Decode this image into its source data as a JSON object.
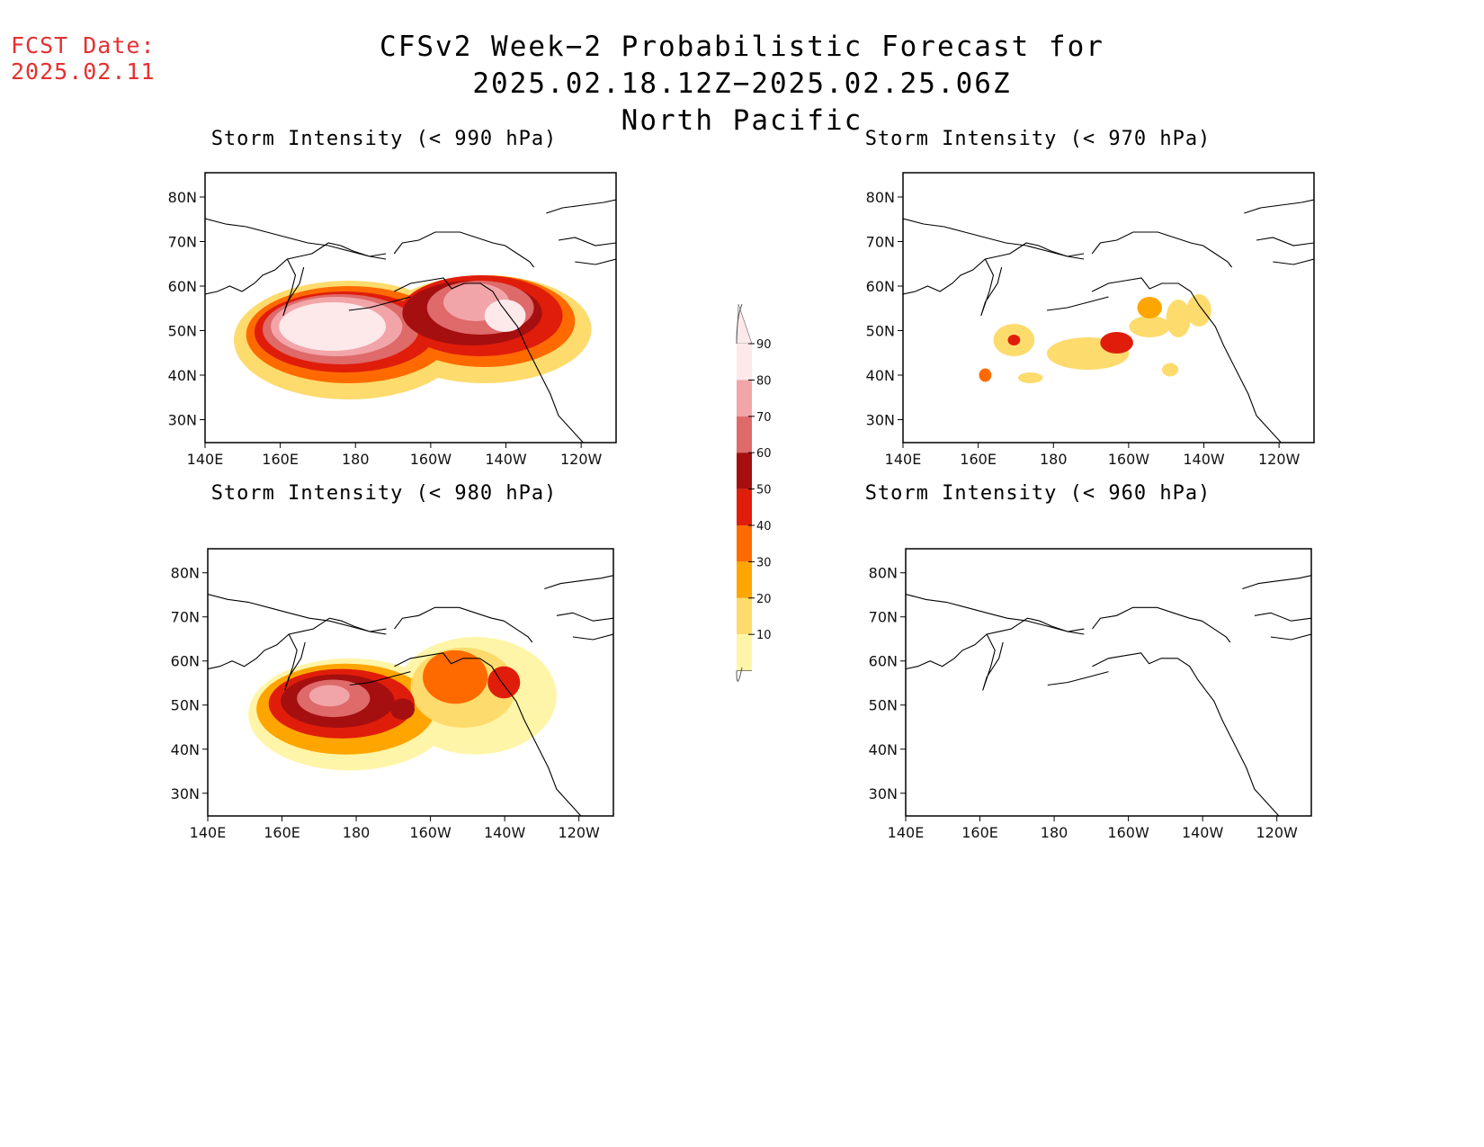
{
  "forecast_date": {
    "label": "FCST Date:",
    "value": "2025.02.11"
  },
  "title": {
    "line1": "CFSv2 Week−2 Probabilistic Forecast for 2025.02.18.12Z−2025.02.25.06Z",
    "line2": "North Pacific"
  },
  "lat_labels": [
    "80N",
    "70N",
    "60N",
    "50N",
    "40N",
    "30N"
  ],
  "lon_labels": [
    "140E",
    "160E",
    "180",
    "160W",
    "140W",
    "120W"
  ],
  "panels": [
    {
      "id": "p990",
      "title": "Storm Intensity (< 990 hPa)",
      "coverage": "extensive"
    },
    {
      "id": "p970",
      "title": "Storm Intensity (< 970 hPa)",
      "coverage": "scattered"
    },
    {
      "id": "p980",
      "title": "Storm Intensity (< 980 hPa)",
      "coverage": "moderate"
    },
    {
      "id": "p960",
      "title": "Storm Intensity (< 960 hPa)",
      "coverage": "none"
    }
  ],
  "colorbar": {
    "ticks": [
      "90",
      "80",
      "70",
      "60",
      "50",
      "40",
      "30",
      "20",
      "10"
    ],
    "colors": [
      "#fde8ea",
      "#f2a5a8",
      "#de6a6a",
      "#a50f0f",
      "#e01d0a",
      "#ff6a00",
      "#ffa500",
      "#fddb6d",
      "#fff5a8"
    ]
  }
}
